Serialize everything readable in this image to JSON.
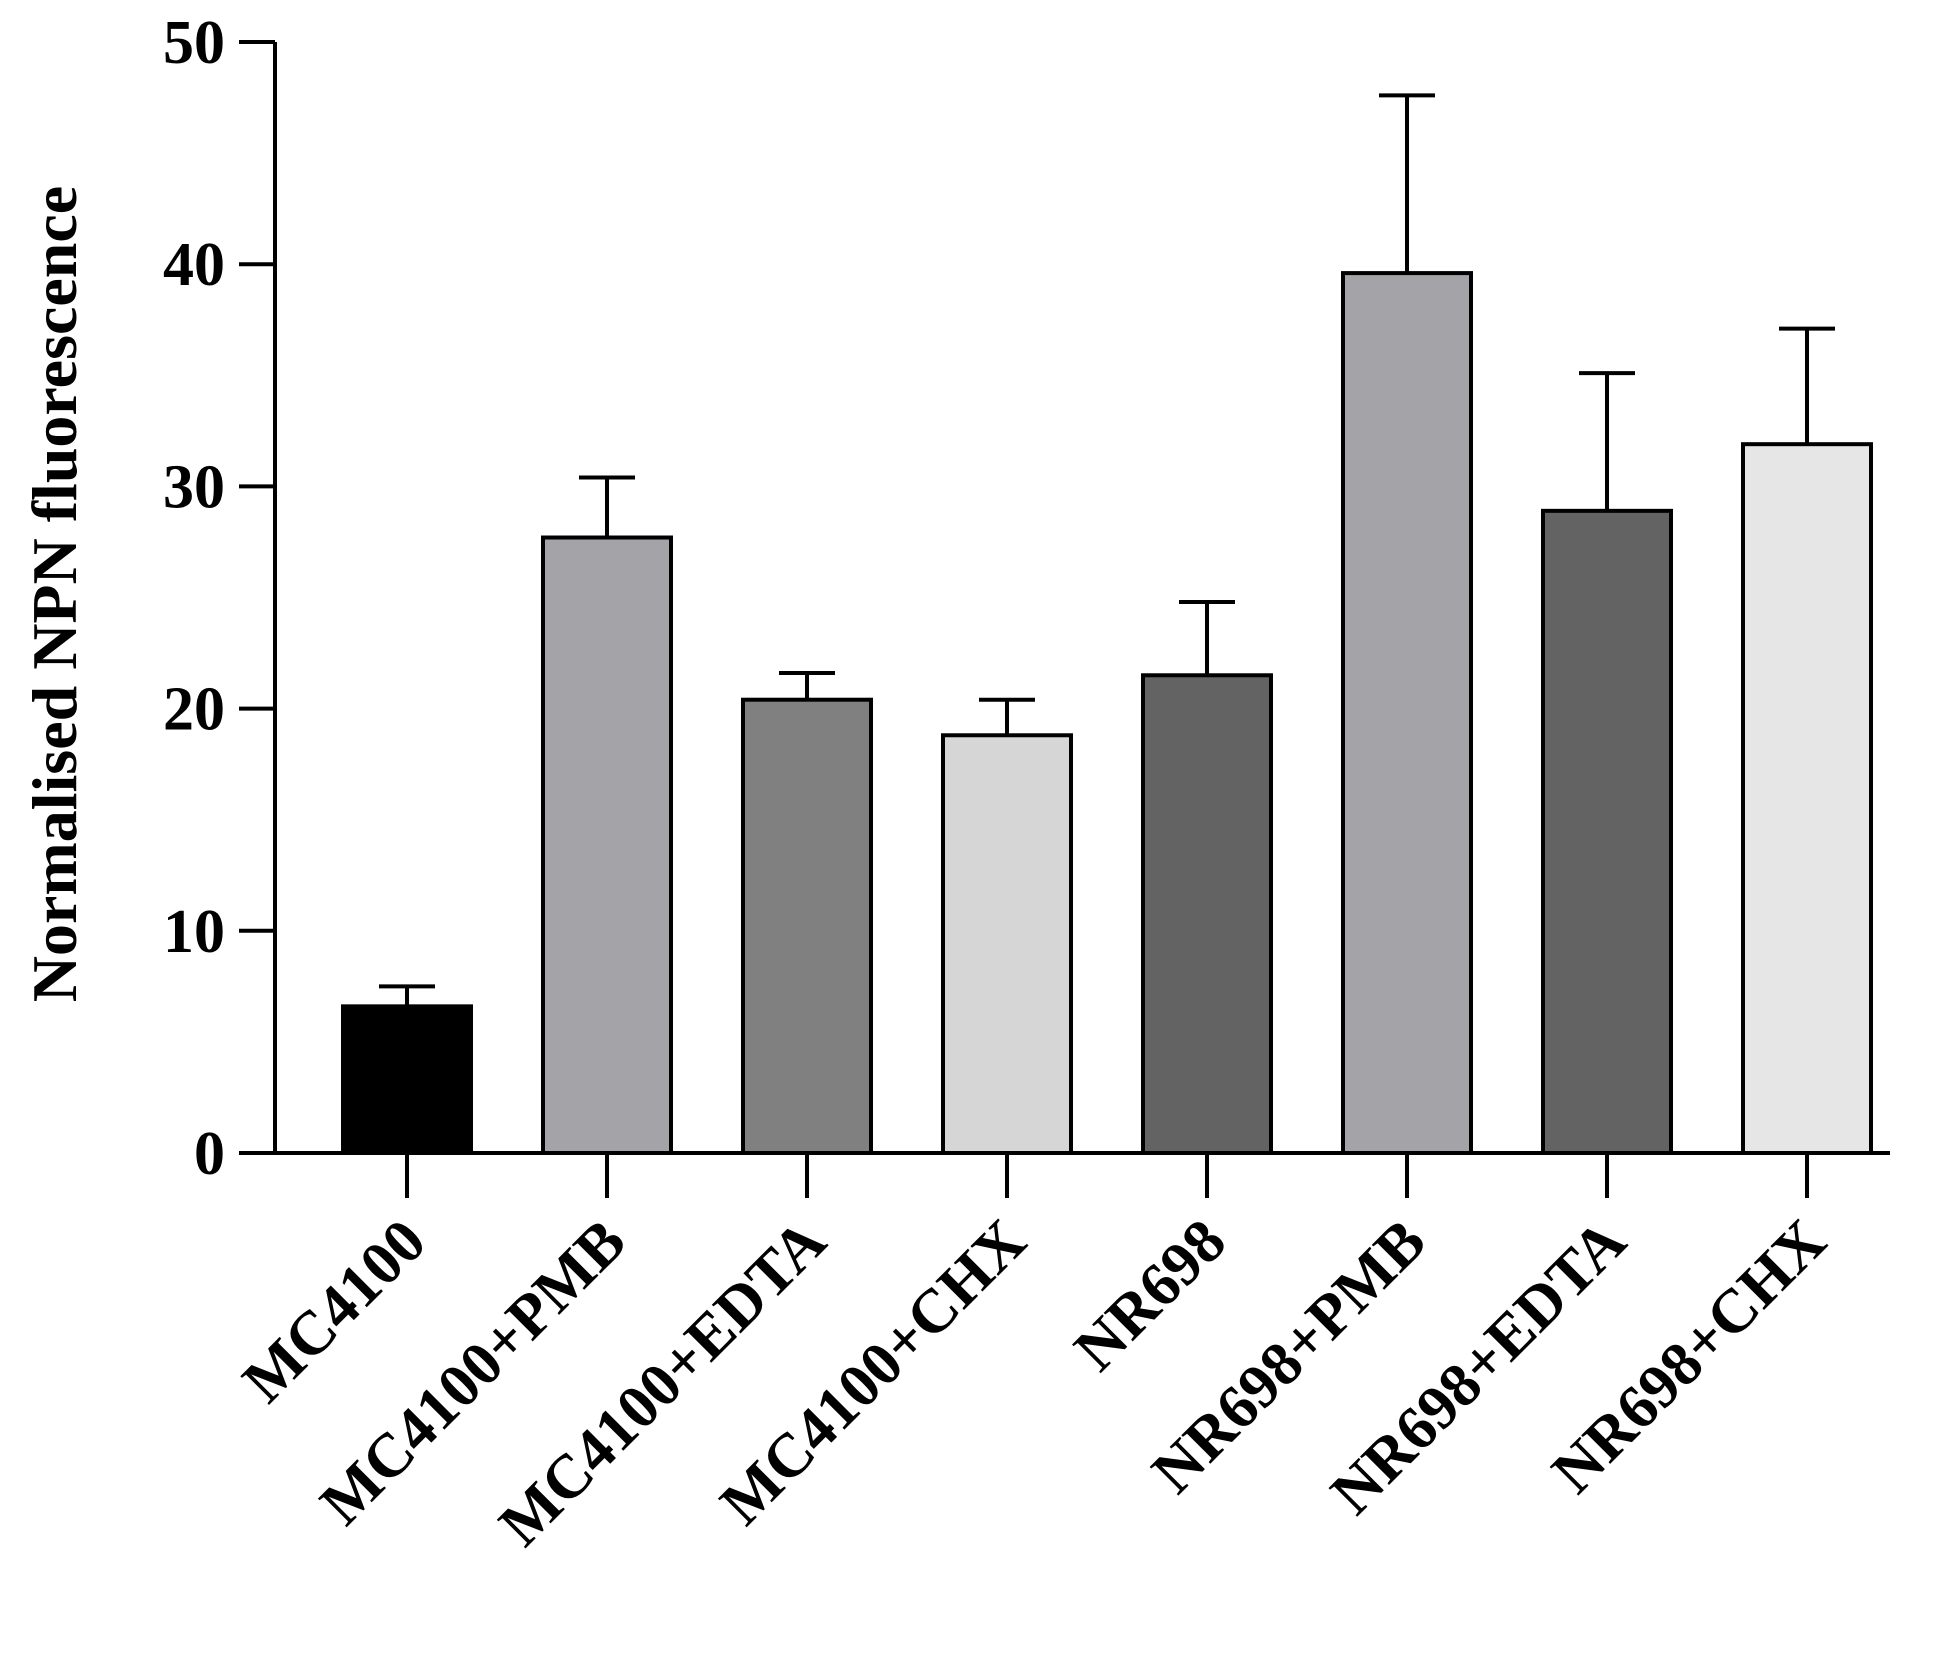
{
  "chart_data": {
    "type": "bar",
    "title": "",
    "xlabel": "",
    "ylabel": "Normalised NPN fluorescence",
    "ylim": [
      0,
      50
    ],
    "yticks": [
      0,
      10,
      20,
      30,
      40,
      50
    ],
    "categories": [
      "MC4100",
      "MC4100+PMB",
      "MC4100+EDTA",
      "MC4100+CHX",
      "NR698",
      "NR698+PMB",
      "NR698+EDTA",
      "NR698+CHX"
    ],
    "values": [
      6.6,
      27.7,
      20.4,
      18.8,
      21.5,
      39.6,
      28.9,
      31.9
    ],
    "errors": [
      0.9,
      2.7,
      1.2,
      1.6,
      3.3,
      8.0,
      6.2,
      5.2
    ],
    "colors": [
      "#000000",
      "#a3a3a8",
      "#808080",
      "#d6d6d6",
      "#636363",
      "#a3a3a8",
      "#636363",
      "#e6e6e6"
    ],
    "grid": false
  }
}
